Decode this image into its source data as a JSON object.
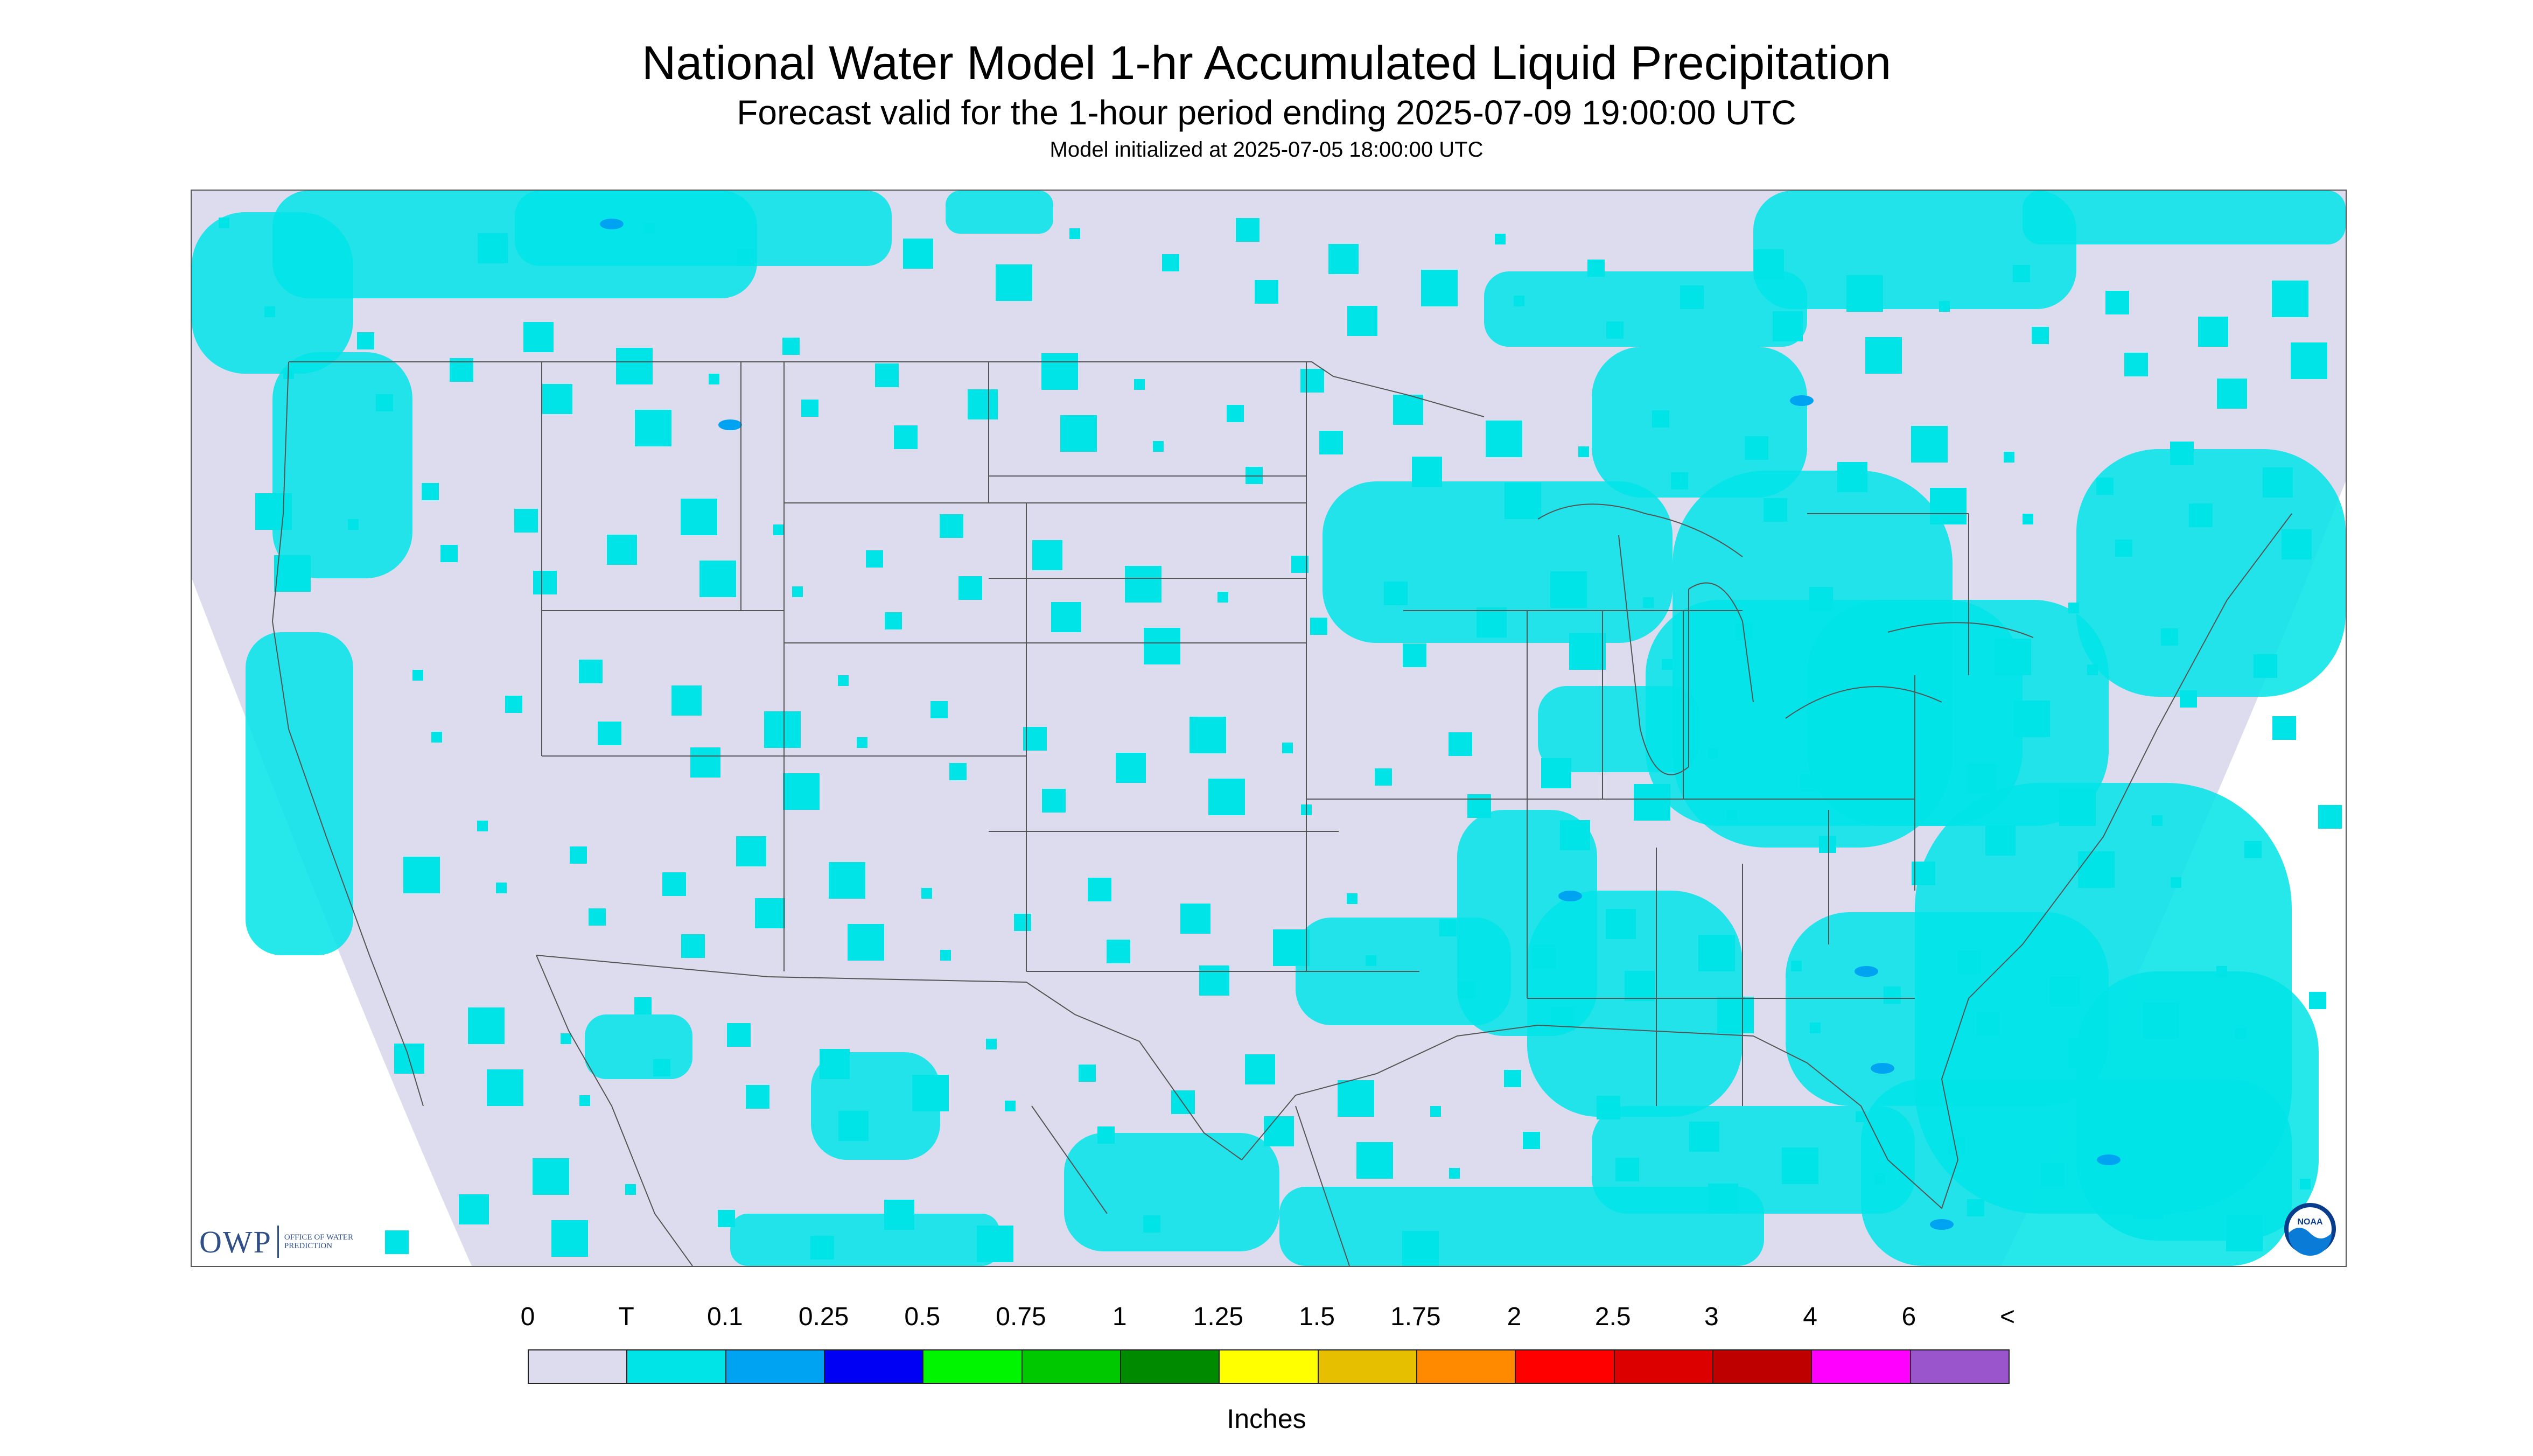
{
  "header": {
    "title": "National Water Model 1-hr Accumulated Liquid Precipitation",
    "subtitle": "Forecast valid for the 1-hour period ending 2025-07-09 19:00:00 UTC",
    "init_line": "Model initialized at 2025-07-05 18:00:00 UTC"
  },
  "logos": {
    "owp_text": "OWP",
    "owp_subtext": "OFFICE OF WATER PREDICTION",
    "noaa_text": "NOAA"
  },
  "legend": {
    "labels": [
      "0",
      "T",
      "0.1",
      "0.25",
      "0.5",
      "0.75",
      "1",
      "1.25",
      "1.5",
      "1.75",
      "2",
      "2.5",
      "3",
      "4",
      "6",
      "<"
    ],
    "colors": [
      "#dcdcee",
      "#00e4e8",
      "#00a2f2",
      "#0000f5",
      "#00f500",
      "#00c800",
      "#008a00",
      "#ffff00",
      "#e5bf00",
      "#ff8a00",
      "#ff0000",
      "#dd0000",
      "#be0000",
      "#ff00ff",
      "#9a55cc"
    ],
    "units": "Inches"
  },
  "map": {
    "background_color": "#dcdcee",
    "outside_domain_color": "#ffffff",
    "light_precip_color": "#00e4e8",
    "moderate_precip_color": "#00a2f2",
    "boundary_color": "#555555"
  }
}
